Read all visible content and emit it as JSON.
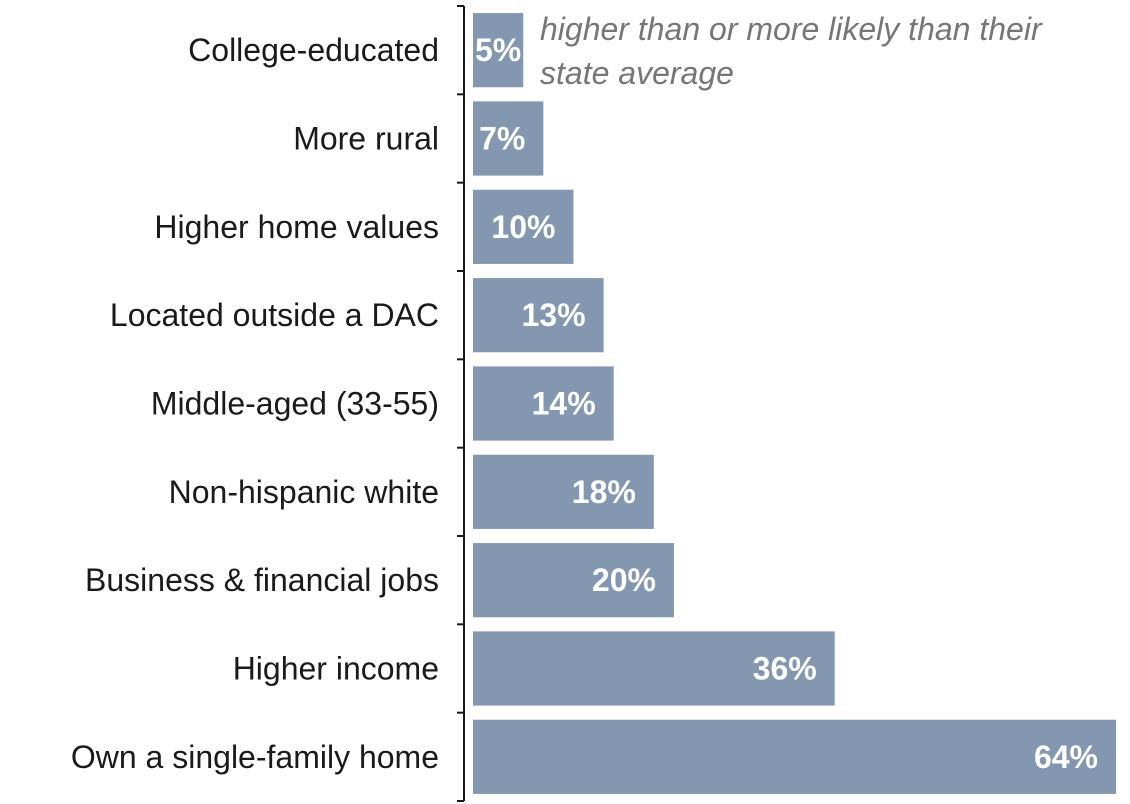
{
  "chart_data": {
    "type": "bar",
    "orientation": "horizontal",
    "categories": [
      "College-educated",
      "More rural",
      "Higher home values",
      "Located outside a DAC",
      "Middle-aged (33-55)",
      "Non-hispanic white",
      "Business & financial jobs",
      "Higher income",
      "Own a single-family home"
    ],
    "values": [
      5,
      7,
      10,
      13,
      14,
      18,
      20,
      36,
      64
    ],
    "value_labels": [
      "5%",
      "7%",
      "10%",
      "13%",
      "14%",
      "18%",
      "20%",
      "36%",
      "64%"
    ],
    "annotation": [
      "higher than or more likely than their",
      "state average"
    ],
    "xlim": [
      0,
      64
    ],
    "grid": false,
    "bar_color": "#8497b0",
    "label_color": "#ffffff"
  }
}
